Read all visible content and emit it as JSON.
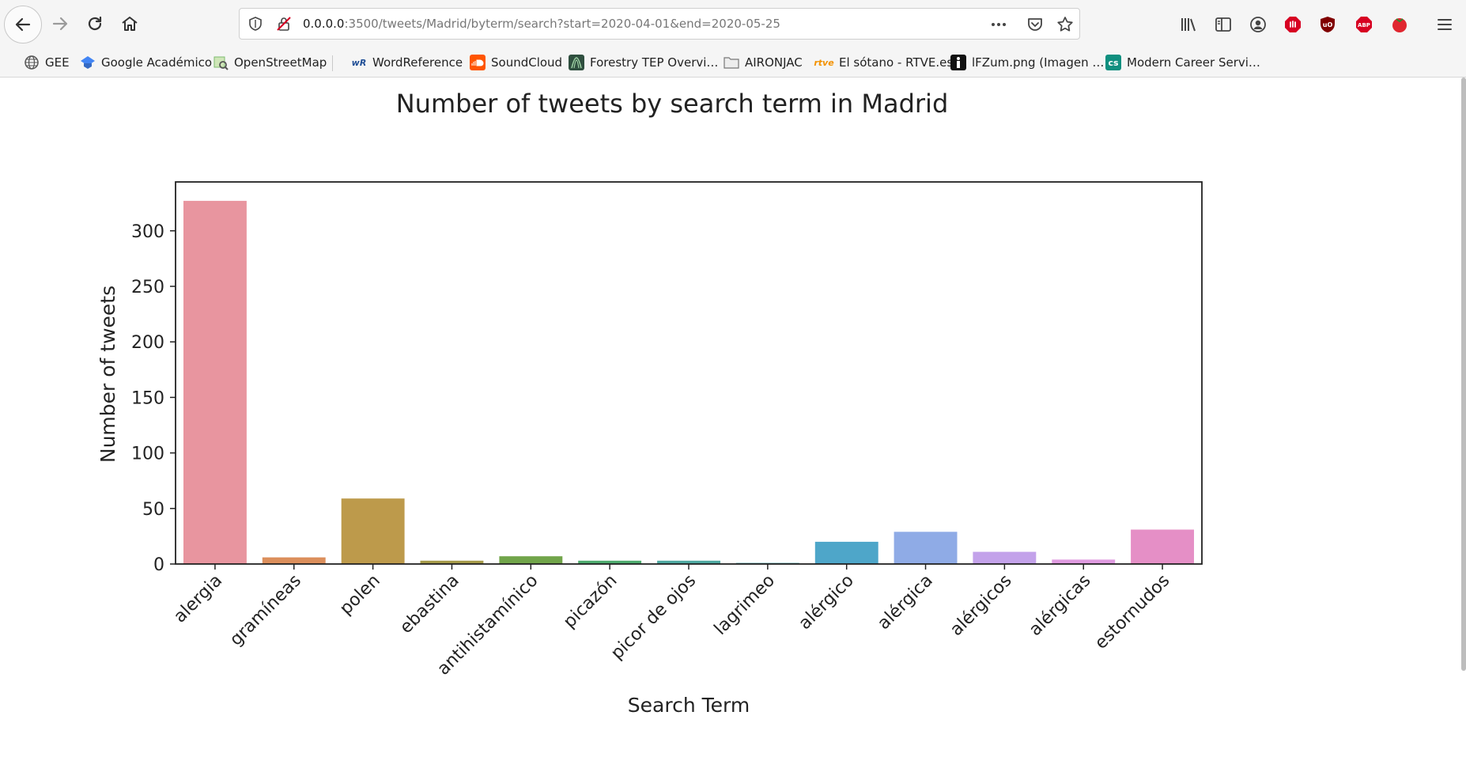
{
  "browser": {
    "url_host": "0.0.0.0",
    "url_rest": ":3500/tweets/Madrid/byterm/search?start=2020-04-01&end=2020-05-25"
  },
  "bookmarks": [
    {
      "label": "GEE",
      "icon": "globe-icon",
      "color": "#555555"
    },
    {
      "label": "Google Académico",
      "icon": "scholar-icon",
      "color": "#4285f4"
    },
    {
      "label": "OpenStreetMap",
      "icon": "map-icon",
      "color": "#7ebc6f"
    },
    {
      "label": "WordReference",
      "icon": "wr-icon",
      "color": "#1f4e96"
    },
    {
      "label": "SoundCloud",
      "icon": "soundcloud-icon",
      "color": "#ff5500"
    },
    {
      "label": "Forestry TEP Overvi…",
      "icon": "forestry-icon",
      "color": "#2f4f3f"
    },
    {
      "label": "AIRONJAC",
      "icon": "folder-icon",
      "color": "#8a8a8a"
    },
    {
      "label": "El sótano - RTVE.es",
      "icon": "rtve-icon",
      "color": "#f39200"
    },
    {
      "label": "lFZum.png (Imagen …",
      "icon": "image-icon",
      "color": "#111111"
    },
    {
      "label": "Modern Career Servi…",
      "icon": "career-icon",
      "color": "#0f8f7f"
    }
  ],
  "chart_data": {
    "type": "bar",
    "title": "Number of tweets by search term in Madrid",
    "xlabel": "Search Term",
    "ylabel": "Number of tweets",
    "categories": [
      "alergia",
      "gramíneas",
      "polen",
      "ebastina",
      "antihistamínico",
      "picazón",
      "picor de ojos",
      "lagrimeo",
      "alérgico",
      "alérgica",
      "alérgicos",
      "alérgicas",
      "estornudos"
    ],
    "values": [
      327,
      6,
      59,
      3,
      7,
      3,
      3,
      1,
      20,
      29,
      11,
      4,
      31
    ],
    "colors": [
      "#e8959f",
      "#dc8f5c",
      "#bd9a4b",
      "#a59a49",
      "#71a54a",
      "#4eab6e",
      "#4fa9a1",
      "#53a5a7",
      "#4ea6c9",
      "#8fabe6",
      "#c3a2ea",
      "#df9be0",
      "#e58fc6"
    ],
    "yticks": [
      0,
      50,
      100,
      150,
      200,
      250,
      300
    ],
    "ylim": [
      0,
      344
    ],
    "grid": false,
    "legend": "none"
  }
}
